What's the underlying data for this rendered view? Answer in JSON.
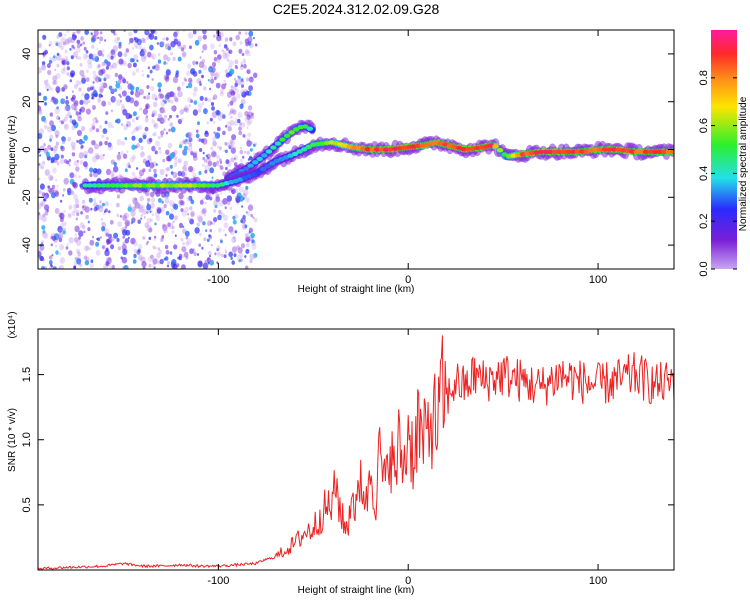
{
  "title": "C2E5.2024.312.02.09.G28",
  "colors": {
    "snr_line": "#ee2222",
    "colormap": [
      "#c9a6f2",
      "#7a1fd6",
      "#2b2bff",
      "#22e0e8",
      "#2cf02c",
      "#ffe400",
      "#ff8a1a",
      "#ff2a2a",
      "#ff1aa0"
    ]
  },
  "chart_data": [
    {
      "type": "heatmap",
      "title": "C2E5.2024.312.02.09.G28",
      "xlabel": "Height of straight line (km)",
      "ylabel": "Frequency (Hz)",
      "xlim": [
        -195,
        140
      ],
      "ylim": [
        -50,
        50
      ],
      "x_ticks": [
        -100,
        0,
        100
      ],
      "x_tick_labels": [
        "-100",
        "0",
        "100"
      ],
      "y_ticks": [
        -40,
        -20,
        0,
        20,
        40
      ],
      "y_tick_labels": [
        "-40",
        "-20",
        "0",
        "20",
        "40"
      ],
      "noise_region_xmax": -80,
      "colorbar": {
        "label": "Normalized spectral amplitude",
        "range": [
          0,
          1
        ],
        "ticks": [
          0.0,
          0.2,
          0.4,
          0.6,
          0.8
        ],
        "tick_labels": [
          "0.0",
          "0.2",
          "0.4",
          "0.6",
          "0.8"
        ]
      },
      "ridge": {
        "x": [
          -170,
          -150,
          -130,
          -115,
          -100,
          -90,
          -80,
          -70,
          -60,
          -50,
          -40,
          -30,
          -20,
          -10,
          0,
          10,
          15,
          20,
          30,
          40,
          45,
          48,
          52,
          60,
          70,
          80,
          90,
          100,
          110,
          120,
          130,
          140
        ],
        "y": [
          -15,
          -15,
          -15,
          -15,
          -15,
          -13,
          -10,
          -5,
          -2,
          2,
          3,
          1,
          0,
          0,
          1,
          2,
          3,
          2,
          0,
          1,
          2,
          0,
          -3,
          -2,
          -1,
          -1,
          -1,
          0,
          0,
          -1,
          -1,
          -1
        ],
        "amplitude": [
          0.45,
          0.55,
          0.6,
          0.6,
          0.5,
          0.35,
          0.3,
          0.35,
          0.4,
          0.55,
          0.6,
          0.75,
          0.9,
          0.95,
          0.95,
          0.9,
          0.85,
          0.9,
          0.95,
          0.95,
          0.9,
          0.6,
          0.55,
          0.9,
          0.95,
          0.95,
          0.9,
          0.9,
          0.95,
          0.9,
          0.9,
          0.9
        ]
      },
      "secondary_branch": {
        "x": [
          -95,
          -85,
          -75,
          -65,
          -60,
          -55,
          -50
        ],
        "y": [
          -12,
          -8,
          -2,
          5,
          8,
          10,
          8
        ],
        "amplitude": [
          0.3,
          0.35,
          0.4,
          0.5,
          0.55,
          0.5,
          0.45
        ]
      }
    },
    {
      "type": "line",
      "xlabel": "Height of straight line (km)",
      "ylabel": "SNR (10 * v/v)",
      "y_multiplier_label": "(x10⁴)",
      "xlim": [
        -195,
        140
      ],
      "ylim": [
        0,
        1.85
      ],
      "x_ticks": [
        -100,
        0,
        100
      ],
      "x_tick_labels": [
        "-100",
        "0",
        "100"
      ],
      "y_ticks": [
        0.5,
        1.0,
        1.5
      ],
      "y_tick_labels": [
        "0.5",
        "1.0",
        "1.5"
      ],
      "series": [
        {
          "x": [
            -195,
            -180,
            -160,
            -150,
            -140,
            -130,
            -120,
            -110,
            -100,
            -90,
            -80,
            -75,
            -70,
            -65,
            -60,
            -55,
            -50,
            -45,
            -40,
            -38,
            -35,
            -32,
            -30,
            -27,
            -25,
            -22,
            -20,
            -17,
            -15,
            -12,
            -10,
            -7,
            -5,
            -2,
            0,
            3,
            5,
            8,
            10,
            13,
            15,
            18,
            20,
            25,
            30,
            35,
            40,
            50,
            60,
            70,
            80,
            90,
            100,
            110,
            120,
            130,
            140
          ],
          "values": [
            0.01,
            0.02,
            0.03,
            0.05,
            0.03,
            0.03,
            0.04,
            0.03,
            0.03,
            0.04,
            0.05,
            0.08,
            0.1,
            0.15,
            0.2,
            0.28,
            0.32,
            0.45,
            0.5,
            0.65,
            0.4,
            0.3,
            0.6,
            0.45,
            0.75,
            0.5,
            0.8,
            0.55,
            0.9,
            0.6,
            1.0,
            0.7,
            0.95,
            0.8,
            1.1,
            0.85,
            1.15,
            0.95,
            1.05,
            1.2,
            1.1,
            1.35,
            1.3,
            1.45,
            1.4,
            1.5,
            1.45,
            1.5,
            1.45,
            1.4,
            1.5,
            1.45,
            1.42,
            1.45,
            1.5,
            1.42,
            1.45
          ]
        }
      ]
    }
  ]
}
